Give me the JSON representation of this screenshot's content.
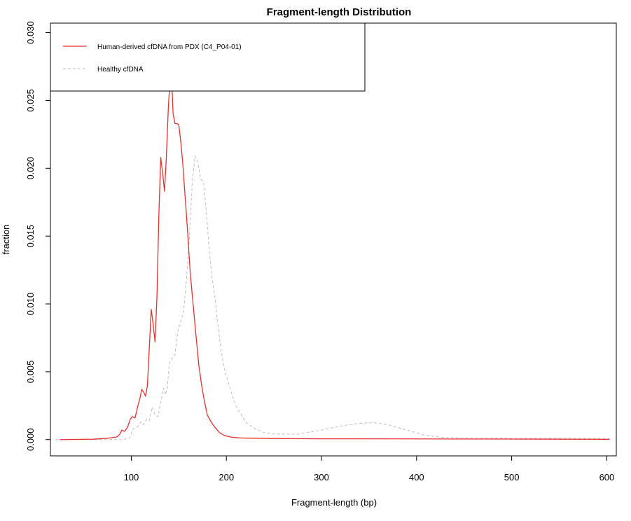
{
  "chart_data": {
    "type": "line",
    "title": "Fragment-length Distribution",
    "xlabel": "Fragment-length (bp)",
    "ylabel": "fraction",
    "xlim": [
      15,
      610
    ],
    "ylim": [
      -0.0012,
      0.0307
    ],
    "xticks": [
      100,
      200,
      300,
      400,
      500,
      600
    ],
    "yticks": [
      0.0,
      0.005,
      0.01,
      0.015,
      0.02,
      0.025,
      0.03
    ],
    "ytick_labels": [
      "0.000",
      "0.005",
      "0.010",
      "0.015",
      "0.020",
      "0.025",
      "0.030"
    ],
    "grid": false,
    "legend_position": "top-left",
    "series": [
      {
        "name": "Human-derived cfDNA from PDX (C4_P04-01)",
        "color": "#e8312e",
        "style": "solid",
        "x": [
          25,
          60,
          75,
          80,
          85,
          88,
          90,
          93,
          96,
          99,
          101,
          104,
          107,
          109,
          111,
          113,
          115,
          117,
          119,
          121,
          123,
          125,
          127,
          129,
          131,
          133,
          135,
          137,
          139,
          141,
          143,
          144,
          146,
          148,
          150,
          152,
          154,
          156,
          158,
          160,
          162,
          165,
          168,
          171,
          174,
          177,
          180,
          184,
          188,
          193,
          198,
          205,
          215,
          230,
          260,
          300,
          400,
          500,
          603
        ],
        "y": [
          0.0,
          3e-05,
          0.0001,
          0.00015,
          0.0002,
          0.0004,
          0.0007,
          0.0006,
          0.0009,
          0.0015,
          0.0017,
          0.0016,
          0.0025,
          0.003,
          0.0037,
          0.0035,
          0.0032,
          0.004,
          0.0068,
          0.0096,
          0.0085,
          0.0072,
          0.0105,
          0.0165,
          0.0208,
          0.0196,
          0.0183,
          0.021,
          0.0245,
          0.0268,
          0.0257,
          0.024,
          0.0233,
          0.0233,
          0.0232,
          0.022,
          0.0205,
          0.0185,
          0.0166,
          0.0145,
          0.0123,
          0.01,
          0.0077,
          0.0055,
          0.004,
          0.0028,
          0.0018,
          0.0013,
          0.0009,
          0.0005,
          0.0003,
          0.00018,
          0.00012,
          0.0001,
          7e-05,
          6e-05,
          5e-05,
          4e-05,
          2e-05
        ]
      },
      {
        "name": "Healthy cfDNA",
        "color": "#bdbdbd",
        "style": "dashed",
        "x": [
          20,
          90,
          98,
          102,
          106,
          110,
          113,
          116,
          119,
          122,
          125,
          128,
          131,
          134,
          136,
          138,
          140,
          143,
          146,
          149,
          152,
          155,
          158,
          161,
          164,
          167,
          170,
          173,
          176,
          179,
          182,
          185,
          188,
          191,
          194,
          197,
          200,
          205,
          210,
          220,
          230,
          240,
          255,
          275,
          300,
          320,
          340,
          355,
          370,
          390,
          410,
          430,
          460,
          500,
          550,
          603
        ],
        "y": [
          0.0,
          0.0,
          0.0001,
          0.0008,
          0.0009,
          0.0013,
          0.0011,
          0.0015,
          0.0014,
          0.0024,
          0.0018,
          0.0017,
          0.0028,
          0.0038,
          0.0033,
          0.0039,
          0.0056,
          0.006,
          0.0063,
          0.008,
          0.0087,
          0.0094,
          0.0118,
          0.0148,
          0.0188,
          0.0209,
          0.0204,
          0.0192,
          0.019,
          0.0168,
          0.014,
          0.0119,
          0.0105,
          0.0085,
          0.0068,
          0.0055,
          0.0047,
          0.0035,
          0.0025,
          0.0013,
          0.0008,
          0.0005,
          0.0004,
          0.0004,
          0.0007,
          0.001,
          0.0012,
          0.00125,
          0.0011,
          0.0007,
          0.0003,
          0.00015,
          0.0001,
          0.0001,
          0.0001,
          8e-05
        ]
      }
    ]
  }
}
